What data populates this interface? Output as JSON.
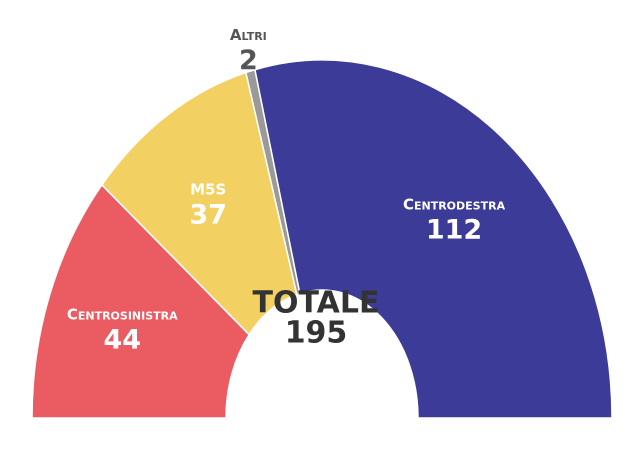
{
  "chart_data": {
    "type": "donut",
    "categories": [
      "Centrosinistra",
      "M5S",
      "Altri",
      "Centrodestra"
    ],
    "values": [
      44,
      37,
      2,
      112
    ],
    "colors": [
      "#ea5b62",
      "#f3d062",
      "#9a9a9a",
      "#3c3b98"
    ],
    "total": {
      "label": "TOTALE",
      "value": 195
    }
  }
}
